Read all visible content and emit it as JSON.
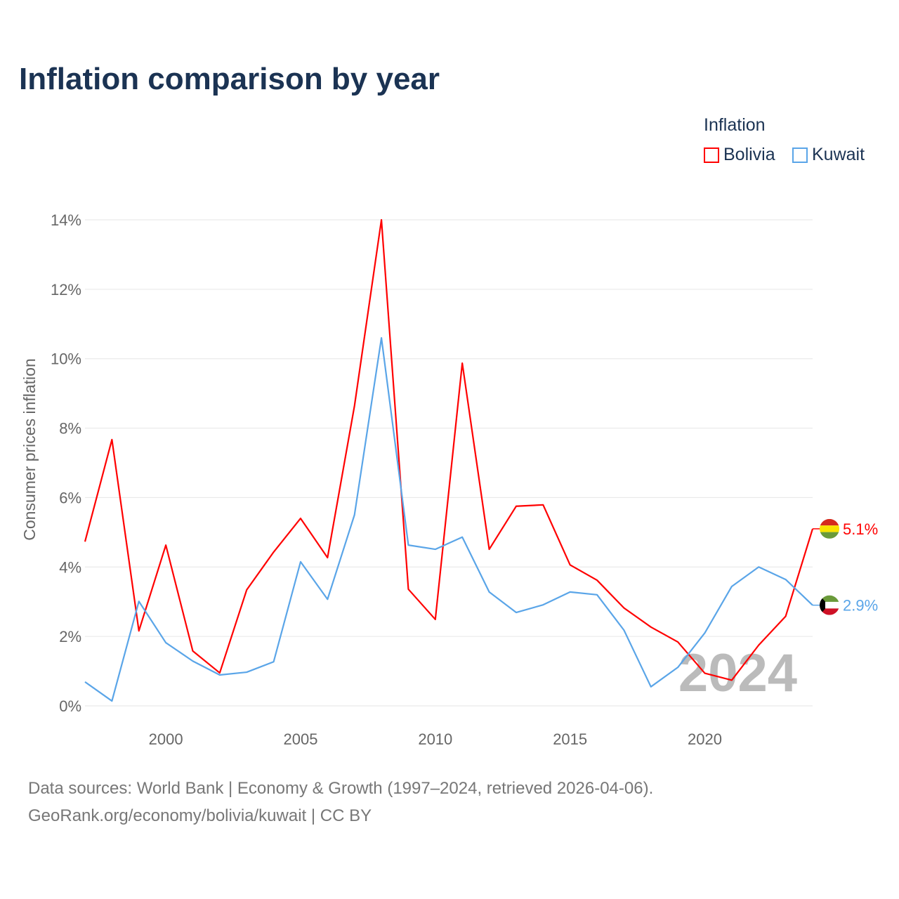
{
  "title": "Inflation comparison by year",
  "legend": {
    "title": "Inflation",
    "items": [
      {
        "name": "Bolivia",
        "color": "#ff0000"
      },
      {
        "name": "Kuwait",
        "color": "#5aa5e8"
      }
    ]
  },
  "footer": {
    "line1": "Data sources: World Bank | Economy & Growth (1997–2024, retrieved 2026-04-06).",
    "line2": "GeoRank.org/economy/bolivia/kuwait | CC BY"
  },
  "chart_data": {
    "type": "line",
    "title": "Inflation comparison by year",
    "ylabel": "Consumer prices inflation",
    "xlabel": "",
    "ylim": [
      0,
      14
    ],
    "xlim": [
      1997,
      2024
    ],
    "yticks": [
      0,
      2,
      4,
      6,
      8,
      10,
      12,
      14
    ],
    "ytick_labels": [
      "0%",
      "2%",
      "4%",
      "6%",
      "8%",
      "10%",
      "12%",
      "14%"
    ],
    "xticks": [
      2000,
      2005,
      2010,
      2015,
      2020
    ],
    "xtick_labels": [
      "2000",
      "2005",
      "2010",
      "2015",
      "2020"
    ],
    "year_watermark": "2024",
    "x": [
      1997,
      1998,
      1999,
      2000,
      2001,
      2002,
      2003,
      2004,
      2005,
      2006,
      2007,
      2008,
      2009,
      2010,
      2011,
      2012,
      2013,
      2014,
      2015,
      2016,
      2017,
      2018,
      2019,
      2020,
      2021,
      2022,
      2023,
      2024
    ],
    "series": [
      {
        "name": "Bolivia",
        "color": "#ff0000",
        "end_label": "5.1%",
        "values": [
          4.73,
          7.67,
          2.16,
          4.63,
          1.58,
          0.95,
          3.34,
          4.43,
          5.4,
          4.27,
          8.64,
          14.0,
          3.36,
          2.49,
          9.87,
          4.51,
          5.75,
          5.79,
          4.06,
          3.62,
          2.82,
          2.27,
          1.84,
          0.94,
          0.74,
          1.75,
          2.58,
          5.1
        ]
      },
      {
        "name": "Kuwait",
        "color": "#5aa5e8",
        "end_label": "2.9%",
        "values": [
          0.69,
          0.14,
          3.01,
          1.82,
          1.29,
          0.89,
          0.97,
          1.27,
          4.15,
          3.07,
          5.5,
          10.6,
          4.63,
          4.51,
          4.86,
          3.28,
          2.69,
          2.91,
          3.28,
          3.2,
          2.18,
          0.55,
          1.11,
          2.1,
          3.44,
          4.0,
          3.64,
          2.9
        ]
      }
    ]
  }
}
